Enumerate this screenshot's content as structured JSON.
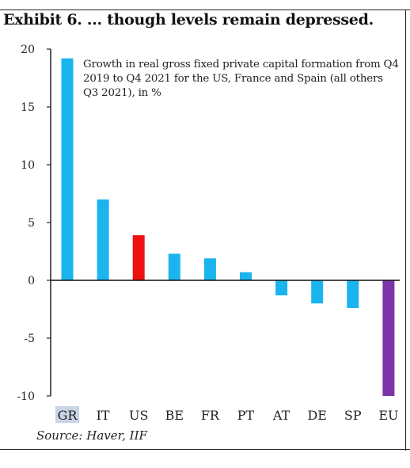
{
  "title": "Exhibit 6. ... though levels remain depressed.",
  "source": "Source: Haver, IIF",
  "chart_data": {
    "type": "bar",
    "title": "Exhibit 6. ... though levels remain depressed.",
    "annotation": "Growth in real gross fixed private capital formation from Q4 2019 to Q4 2021 for the US, France and Spain (all others Q3 2021), in %",
    "xlabel": "",
    "ylabel": "",
    "ylim": [
      -10,
      20
    ],
    "yticks": [
      "20",
      "15",
      "10",
      "5",
      "0",
      "-5",
      "-10"
    ],
    "categories": [
      "GR",
      "IT",
      "US",
      "BE",
      "FR",
      "PT",
      "AT",
      "DE",
      "SP",
      "EU"
    ],
    "values": [
      19.2,
      7.0,
      3.9,
      2.3,
      1.9,
      0.7,
      -1.3,
      -2.0,
      -2.4,
      -10.0
    ],
    "colors": [
      "#1ab4ee",
      "#1ab4ee",
      "#ee1111",
      "#1ab4ee",
      "#1ab4ee",
      "#1ab4ee",
      "#1ab4ee",
      "#1ab4ee",
      "#1ab4ee",
      "#7b35a8"
    ],
    "grid": false,
    "legend": "none"
  }
}
